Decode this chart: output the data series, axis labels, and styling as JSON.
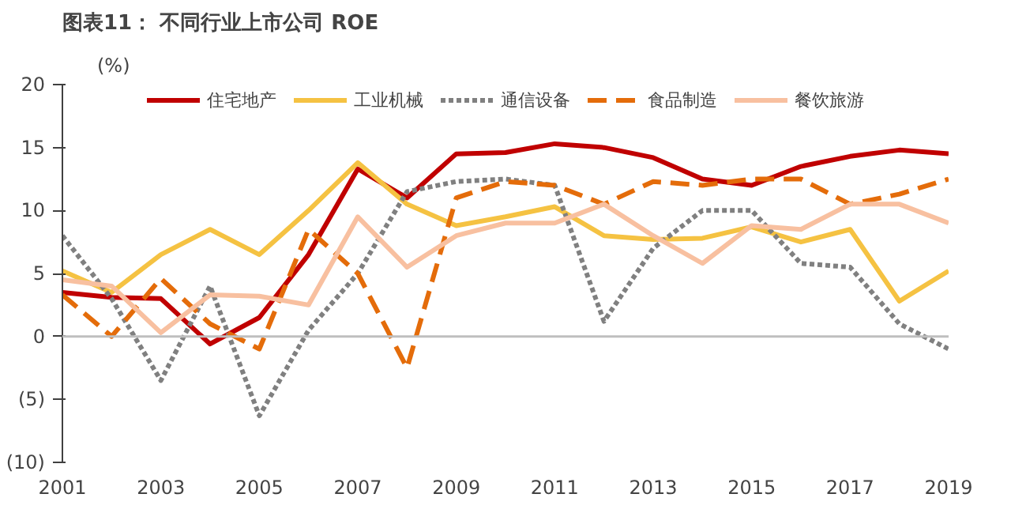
{
  "chart_data": {
    "type": "line",
    "title": "图表11：  不同行业上市公司 ROE",
    "ylabel": "(%)",
    "x": [
      2001,
      2002,
      2003,
      2004,
      2005,
      2006,
      2007,
      2008,
      2009,
      2010,
      2011,
      2012,
      2013,
      2014,
      2015,
      2016,
      2017,
      2018,
      2019
    ],
    "series": [
      {
        "name": "住宅地产",
        "color": "#c00000",
        "line_style": "solid",
        "values": [
          3.5,
          3.1,
          3.0,
          -0.6,
          1.5,
          6.5,
          13.3,
          11,
          14.5,
          14.6,
          15.3,
          15.0,
          14.2,
          12.5,
          12,
          13.5,
          14.3,
          14.8,
          14.5
        ]
      },
      {
        "name": "工业机械",
        "color": "#f5c242",
        "line_style": "solid",
        "values": [
          5.2,
          3.5,
          6.5,
          8.5,
          6.5,
          10,
          13.8,
          10.5,
          8.8,
          9.5,
          10.3,
          8,
          7.7,
          7.8,
          8.7,
          7.5,
          8.5,
          2.8,
          5.2
        ]
      },
      {
        "name": "通信设备",
        "color": "#808080",
        "line_style": "dotted",
        "values": [
          8,
          3,
          -3.5,
          4,
          -6.3,
          0.5,
          5,
          11.5,
          12.3,
          12.5,
          12,
          1.2,
          7,
          10,
          10,
          5.8,
          5.5,
          1,
          -1
        ]
      },
      {
        "name": "食品制造",
        "color": "#e46c0a",
        "line_style": "dashed",
        "values": [
          3.3,
          0,
          4.6,
          1,
          -1,
          8.5,
          5,
          -2.5,
          11,
          12.3,
          12,
          10.5,
          12.3,
          12,
          12.5,
          12.5,
          10.5,
          11.3,
          12.5
        ]
      },
      {
        "name": "餐饮旅游",
        "color": "#f8c0a0",
        "line_style": "solid",
        "values": [
          4.5,
          4,
          0.3,
          3.3,
          3.2,
          2.5,
          9.5,
          5.5,
          8,
          9,
          9,
          10.5,
          8,
          5.8,
          8.8,
          8.5,
          10.5,
          10.5,
          9
        ]
      }
    ],
    "xlim": [
      2001,
      2019
    ],
    "xticks": [
      2001,
      2003,
      2005,
      2007,
      2009,
      2011,
      2013,
      2015,
      2017,
      2019
    ],
    "ylim": [
      -10,
      20
    ],
    "yticks": [
      {
        "value": -10,
        "label": "(10)"
      },
      {
        "value": -5,
        "label": "(5)"
      },
      0,
      5,
      10,
      15,
      20
    ],
    "ref_lines": [
      {
        "axis": "y",
        "value": 0,
        "color": "#bfbfbf"
      }
    ],
    "grid": false,
    "legend": "top",
    "marker": "none"
  }
}
